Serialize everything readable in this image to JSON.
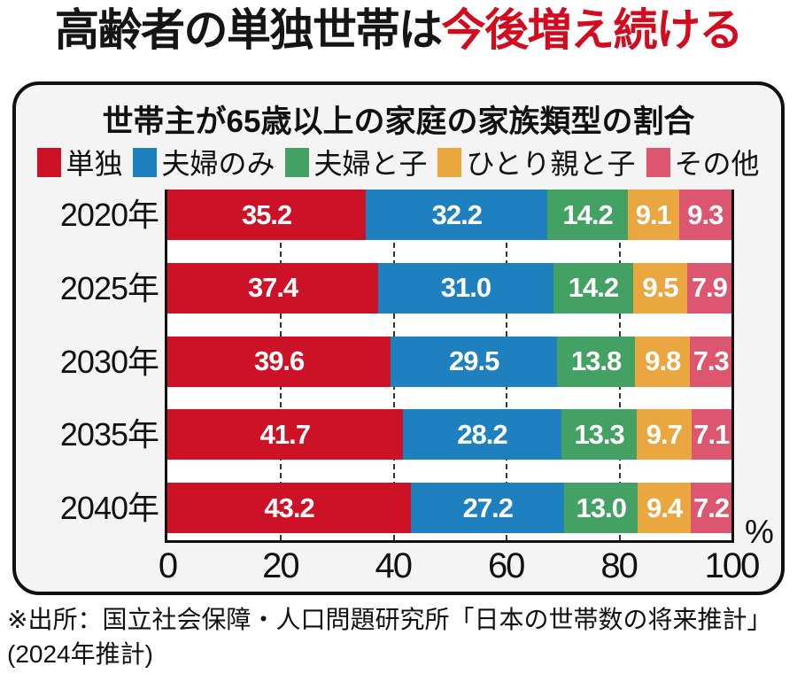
{
  "headline": {
    "black": "高齢者の単独世帯は",
    "red": "今後増え続ける",
    "red_color": "#d20b1e"
  },
  "chart_data": {
    "type": "bar",
    "variant": "horizontal-stacked",
    "title": "世帯主が65歳以上の家庭の家族類型の割合",
    "categories": [
      "2020年",
      "2025年",
      "2030年",
      "2035年",
      "2040年"
    ],
    "series": [
      {
        "name": "単独",
        "color": "#cd1126",
        "values": [
          35.2,
          37.4,
          39.6,
          41.7,
          43.2
        ]
      },
      {
        "name": "夫婦のみ",
        "color": "#1f80c0",
        "values": [
          32.2,
          31.0,
          29.5,
          28.2,
          27.2
        ]
      },
      {
        "name": "夫婦と子",
        "color": "#43a163",
        "values": [
          14.2,
          14.2,
          13.8,
          13.3,
          13.0
        ]
      },
      {
        "name": "ひとり親と子",
        "color": "#eaa63f",
        "values": [
          9.1,
          9.5,
          9.8,
          9.7,
          9.4
        ]
      },
      {
        "name": "その他",
        "color": "#dc5670",
        "values": [
          9.3,
          7.9,
          7.3,
          7.1,
          7.2
        ]
      }
    ],
    "xlim": [
      0,
      100
    ],
    "x_ticks": [
      0,
      20,
      40,
      60,
      80,
      100
    ],
    "unit": "%",
    "value_decimals": 1,
    "legend_position": "top",
    "grid": "vertical-dashed"
  },
  "footer": {
    "source_line1": "※出所：国立社会保障・人口問題研究所「日本の世帯数の将来推計」",
    "source_line2": "(2024年推計)"
  }
}
